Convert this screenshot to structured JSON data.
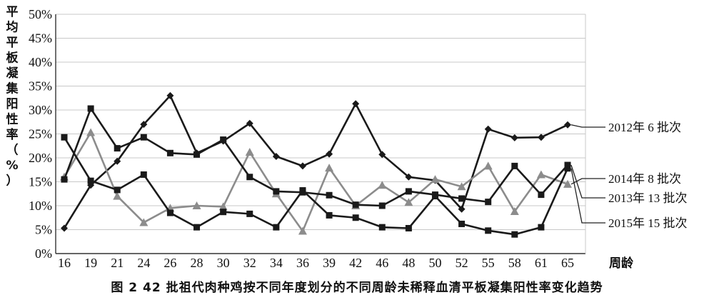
{
  "caption": "图 2   42 批祖代肉种鸡按不同年度划分的不同周龄未稀释血清平板凝集阳性率变化趋势",
  "chart_data": {
    "type": "line",
    "ylabel": "平均平板凝集阳性率（%）",
    "xlabel": "周龄",
    "categories": [
      "16",
      "19",
      "21",
      "24",
      "26",
      "28",
      "30",
      "32",
      "34",
      "36",
      "39",
      "42",
      "46",
      "48",
      "50",
      "52",
      "55",
      "58",
      "61",
      "65"
    ],
    "ylim": [
      0,
      50
    ],
    "yticks": [
      "0%",
      "5%",
      "10%",
      "15%",
      "20%",
      "25%",
      "30%",
      "35%",
      "40%",
      "45%",
      "50%"
    ],
    "grid": true,
    "series": [
      {
        "name": "2012年 6 批次",
        "marker": "diamond",
        "color": "#1a1a1a",
        "values": [
          5.3,
          14.3,
          19.3,
          27.0,
          33.0,
          21.0,
          23.5,
          27.2,
          20.3,
          18.3,
          20.8,
          31.3,
          20.7,
          16.0,
          15.3,
          9.3,
          26.0,
          24.2,
          24.3,
          26.9
        ]
      },
      {
        "name": "2014年 8 批次",
        "marker": "triangle",
        "color": "#8c8c8c",
        "values": [
          16.0,
          25.3,
          12.0,
          6.5,
          9.5,
          10.0,
          9.8,
          21.2,
          12.5,
          4.7,
          17.9,
          10.0,
          14.3,
          10.7,
          15.5,
          14.0,
          18.3,
          8.8,
          16.5,
          14.5
        ]
      },
      {
        "name": "2013年 13 批次",
        "marker": "square",
        "color": "#1a1a1a",
        "values": [
          15.5,
          30.3,
          22.0,
          24.3,
          21.0,
          20.7,
          23.8,
          16.0,
          13.0,
          12.8,
          12.2,
          10.2,
          10.0,
          13.0,
          12.3,
          11.5,
          10.8,
          18.3,
          12.3,
          18.5
        ]
      },
      {
        "name": "2015年 15 批次",
        "marker": "square",
        "color": "#1a1a1a",
        "values": [
          24.3,
          15.2,
          13.3,
          16.5,
          8.5,
          5.5,
          8.7,
          8.3,
          5.5,
          13.2,
          8.0,
          7.5,
          5.5,
          5.3,
          12.0,
          6.2,
          4.8,
          4.0,
          5.5,
          17.8
        ]
      }
    ]
  }
}
